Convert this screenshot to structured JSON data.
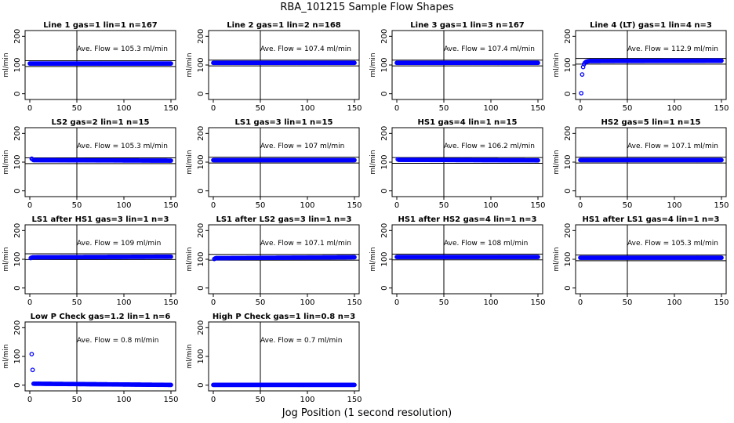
{
  "figure": {
    "title": "RBA_101215  Sample Flow Shapes",
    "xlabel": "Jog Position (1 second resolution)"
  },
  "chart_data": [
    {
      "type": "scatter",
      "title": "Line 1 gas=1 lin=1 n=167",
      "ylabel": "ml/min",
      "annotation": "Ave. Flow =  105.3  ml/min",
      "xlim": [
        0,
        150
      ],
      "ylim": [
        -20,
        220
      ],
      "xticks": [
        0,
        50,
        100,
        150
      ],
      "yticks": [
        0,
        100,
        200
      ],
      "vline_x": 50,
      "hline_y": [
        95,
        115
      ],
      "point_color": "#0000ff",
      "points_x": [
        0,
        150
      ],
      "points_y": [
        105.3,
        105.3
      ]
    },
    {
      "type": "scatter",
      "title": "Line 2 gas=1 lin=2 n=168",
      "ylabel": "ml/min",
      "annotation": "Ave. Flow =  107.4  ml/min",
      "xlim": [
        0,
        150
      ],
      "ylim": [
        -20,
        220
      ],
      "xticks": [
        0,
        50,
        100,
        150
      ],
      "yticks": [
        0,
        100,
        200
      ],
      "vline_x": 50,
      "hline_y": [
        97,
        117
      ],
      "point_color": "#0000ff",
      "points_x": [
        0,
        150
      ],
      "points_y": [
        107.4,
        107.4
      ]
    },
    {
      "type": "scatter",
      "title": "Line 3 gas=1 lin=3 n=167",
      "ylabel": "ml/min",
      "annotation": "Ave. Flow =  107.4  ml/min",
      "xlim": [
        0,
        150
      ],
      "ylim": [
        -20,
        220
      ],
      "xticks": [
        0,
        50,
        100,
        150
      ],
      "yticks": [
        0,
        100,
        200
      ],
      "vline_x": 50,
      "hline_y": [
        97,
        117
      ],
      "point_color": "#0000ff",
      "points_x": [
        0,
        150
      ],
      "points_y": [
        107.4,
        107.4
      ]
    },
    {
      "type": "scatter",
      "title": "Line 4 (LT) gas=1 lin=4 n=3",
      "ylabel": "ml/min",
      "annotation": "Ave. Flow =  112.9  ml/min",
      "xlim": [
        0,
        150
      ],
      "ylim": [
        -20,
        220
      ],
      "xticks": [
        0,
        50,
        100,
        150
      ],
      "yticks": [
        0,
        100,
        200
      ],
      "vline_x": 50,
      "hline_y": [
        103,
        123
      ],
      "point_color": "#0000ff",
      "points_x": [
        1,
        2,
        3,
        4,
        5,
        6,
        8,
        10,
        150
      ],
      "points_y": [
        2,
        67,
        93,
        103,
        108,
        111,
        113,
        114,
        115
      ]
    },
    {
      "type": "scatter",
      "title": "LS2 gas=2 lin=1 n=15",
      "ylabel": "ml/min",
      "annotation": "Ave. Flow =  105.3  ml/min",
      "xlim": [
        0,
        150
      ],
      "ylim": [
        -20,
        220
      ],
      "xticks": [
        0,
        50,
        100,
        150
      ],
      "yticks": [
        0,
        100,
        200
      ],
      "vline_x": 50,
      "hline_y": [
        95,
        115
      ],
      "point_color": "#0000ff",
      "points_x": [
        2,
        3,
        4,
        150
      ],
      "points_y": [
        112,
        110,
        107,
        105.3
      ]
    },
    {
      "type": "scatter",
      "title": "LS1 gas=3 lin=1 n=15",
      "ylabel": "ml/min",
      "annotation": "Ave. Flow =  107  ml/min",
      "xlim": [
        0,
        150
      ],
      "ylim": [
        -20,
        220
      ],
      "xticks": [
        0,
        50,
        100,
        150
      ],
      "yticks": [
        0,
        100,
        200
      ],
      "vline_x": 50,
      "hline_y": [
        97,
        117
      ],
      "point_color": "#0000ff",
      "points_x": [
        0,
        150
      ],
      "points_y": [
        107,
        107
      ]
    },
    {
      "type": "scatter",
      "title": "HS1 gas=4 lin=1 n=15",
      "ylabel": "ml/min",
      "annotation": "Ave. Flow =  106.2  ml/min",
      "xlim": [
        0,
        150
      ],
      "ylim": [
        -20,
        220
      ],
      "xticks": [
        0,
        50,
        100,
        150
      ],
      "yticks": [
        0,
        100,
        200
      ],
      "vline_x": 50,
      "hline_y": [
        96,
        116
      ],
      "point_color": "#0000ff",
      "points_x": [
        1,
        2,
        150
      ],
      "points_y": [
        110,
        108,
        106.2
      ]
    },
    {
      "type": "scatter",
      "title": "HS2 gas=5 lin=1 n=15",
      "ylabel": "ml/min",
      "annotation": "Ave. Flow =  107.1  ml/min",
      "xlim": [
        0,
        150
      ],
      "ylim": [
        -20,
        220
      ],
      "xticks": [
        0,
        50,
        100,
        150
      ],
      "yticks": [
        0,
        100,
        200
      ],
      "vline_x": 50,
      "hline_y": [
        97,
        117
      ],
      "point_color": "#0000ff",
      "points_x": [
        0,
        150
      ],
      "points_y": [
        107.1,
        107.1
      ]
    },
    {
      "type": "scatter",
      "title": "LS1 after HS1 gas=3 lin=1 n=3",
      "ylabel": "ml/min",
      "annotation": "Ave. Flow =  109  ml/min",
      "xlim": [
        0,
        150
      ],
      "ylim": [
        -20,
        220
      ],
      "xticks": [
        0,
        50,
        100,
        150
      ],
      "yticks": [
        0,
        100,
        200
      ],
      "vline_x": 50,
      "hline_y": [
        99,
        119
      ],
      "point_color": "#0000ff",
      "points_x": [
        1,
        2,
        3,
        150
      ],
      "points_y": [
        104,
        106,
        107,
        109
      ]
    },
    {
      "type": "scatter",
      "title": "LS1 after LS2 gas=3 lin=1 n=3",
      "ylabel": "ml/min",
      "annotation": "Ave. Flow =  107.1  ml/min",
      "xlim": [
        0,
        150
      ],
      "ylim": [
        -20,
        220
      ],
      "xticks": [
        0,
        50,
        100,
        150
      ],
      "yticks": [
        0,
        100,
        200
      ],
      "vline_x": 50,
      "hline_y": [
        97,
        117
      ],
      "point_color": "#0000ff",
      "points_x": [
        1,
        2,
        3,
        150
      ],
      "points_y": [
        101,
        103,
        104,
        107.1
      ]
    },
    {
      "type": "scatter",
      "title": "HS1 after HS2 gas=4 lin=1 n=3",
      "ylabel": "ml/min",
      "annotation": "Ave. Flow =  108  ml/min",
      "xlim": [
        0,
        150
      ],
      "ylim": [
        -20,
        220
      ],
      "xticks": [
        0,
        50,
        100,
        150
      ],
      "yticks": [
        0,
        100,
        200
      ],
      "vline_x": 50,
      "hline_y": [
        98,
        118
      ],
      "point_color": "#0000ff",
      "points_x": [
        0,
        150
      ],
      "points_y": [
        108,
        108
      ]
    },
    {
      "type": "scatter",
      "title": "HS1 after LS1 gas=4 lin=1 n=3",
      "ylabel": "ml/min",
      "annotation": "Ave. Flow =  105.3  ml/min",
      "xlim": [
        0,
        150
      ],
      "ylim": [
        -20,
        220
      ],
      "xticks": [
        0,
        50,
        100,
        150
      ],
      "yticks": [
        0,
        100,
        200
      ],
      "vline_x": 50,
      "hline_y": [
        95,
        115
      ],
      "point_color": "#0000ff",
      "points_x": [
        0,
        150
      ],
      "points_y": [
        105.3,
        105.3
      ]
    },
    {
      "type": "scatter",
      "title": "Low P Check gas=1.2 lin=1 n=6",
      "ylabel": "ml/min",
      "annotation": "Ave. Flow =  0.8  ml/min",
      "xlim": [
        0,
        150
      ],
      "ylim": [
        -20,
        220
      ],
      "xticks": [
        0,
        50,
        100,
        150
      ],
      "yticks": [
        0,
        100,
        200
      ],
      "vline_x": 50,
      "hline_y": [],
      "point_color": "#0000ff",
      "points_x": [
        2,
        3,
        4,
        150
      ],
      "points_y": [
        108,
        53,
        5,
        0.8
      ]
    },
    {
      "type": "scatter",
      "title": "High P Check gas=1 lin=0.8 n=3",
      "ylabel": "ml/min",
      "annotation": "Ave. Flow =  0.7  ml/min",
      "xlim": [
        0,
        150
      ],
      "ylim": [
        -20,
        220
      ],
      "xticks": [
        0,
        50,
        100,
        150
      ],
      "yticks": [
        0,
        100,
        200
      ],
      "vline_x": 50,
      "hline_y": [],
      "point_color": "#0000ff",
      "points_x": [
        0,
        150
      ],
      "points_y": [
        0.7,
        0.7
      ]
    }
  ]
}
